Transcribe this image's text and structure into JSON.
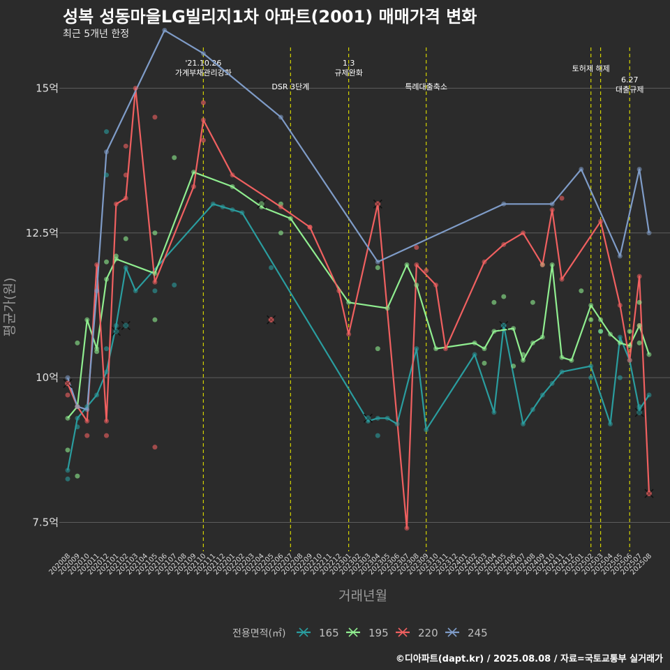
{
  "title": "성복 성동마을LG빌리지1차 아파트(2001) 매매가격 변화",
  "subtitle": "최근 5개년 한정",
  "caption": "©디아파트(dapt.kr) / 2025.08.08 / 자료=국토교통부 실거래가",
  "chart_data": {
    "type": "line",
    "xlabel": "거래년월",
    "ylabel": "평균가(원)",
    "ylim": [
      7.0,
      15.8
    ],
    "yticks": [
      {
        "value": 7.5,
        "label": "7.5억"
      },
      {
        "value": 10,
        "label": "10억"
      },
      {
        "value": 12.5,
        "label": "12.5억"
      },
      {
        "value": 15,
        "label": "15억"
      }
    ],
    "categories": [
      "202008",
      "202009",
      "202010",
      "202011",
      "202012",
      "202101",
      "202102",
      "202103",
      "202104",
      "202105",
      "202106",
      "202107",
      "202108",
      "202109",
      "202110",
      "202111",
      "202112",
      "202201",
      "202202",
      "202203",
      "202204",
      "202205",
      "202206",
      "202207",
      "202208",
      "202209",
      "202210",
      "202211",
      "202212",
      "202301",
      "202302",
      "202303",
      "202304",
      "202305",
      "202306",
      "202307",
      "202308",
      "202309",
      "202310",
      "202311",
      "202312",
      "202401",
      "202402",
      "202403",
      "202404",
      "202405",
      "202406",
      "202407",
      "202408",
      "202409",
      "202410",
      "202411",
      "202412",
      "202501",
      "202502",
      "202503",
      "202504",
      "202505",
      "202506",
      "202507",
      "202508"
    ],
    "legend_title": "전용면적(㎡)",
    "legend_position": "bottom",
    "colors": {
      "165": "#2a9d9f",
      "195": "#90ee90",
      "220": "#f06060",
      "245": "#7f9cc8",
      "event": "#d4d400",
      "grid": "#5e5e5e"
    },
    "series": [
      {
        "name": "165",
        "points": [
          [
            0,
            8.4
          ],
          [
            1,
            9.3
          ],
          [
            2,
            9.5
          ],
          [
            3,
            9.7
          ],
          [
            4,
            10.1
          ],
          [
            5,
            10.9
          ],
          [
            6,
            11.9
          ],
          [
            7,
            11.5
          ],
          [
            15,
            13.0
          ],
          [
            16,
            12.95
          ],
          [
            17,
            12.9
          ],
          [
            18,
            12.85
          ],
          [
            31,
            9.25
          ],
          [
            32,
            9.3
          ],
          [
            33,
            9.3
          ],
          [
            34,
            9.2
          ],
          [
            36,
            10.5
          ],
          [
            37,
            9.1
          ],
          [
            42,
            10.4
          ],
          [
            44,
            9.4
          ],
          [
            45,
            10.9
          ],
          [
            47,
            9.2
          ],
          [
            48,
            9.45
          ],
          [
            49,
            9.7
          ],
          [
            50,
            9.9
          ],
          [
            51,
            10.1
          ],
          [
            54,
            10.2
          ],
          [
            56,
            9.2
          ],
          [
            57,
            10.7
          ],
          [
            58,
            10.3
          ],
          [
            59,
            9.45
          ],
          [
            60,
            9.7
          ]
        ]
      },
      {
        "name": "195",
        "points": [
          [
            0,
            9.3
          ],
          [
            1,
            9.5
          ],
          [
            2,
            11.0
          ],
          [
            3,
            10.5
          ],
          [
            4,
            11.7
          ],
          [
            5,
            12.05
          ],
          [
            9,
            11.8
          ],
          [
            13,
            13.55
          ],
          [
            17,
            13.3
          ],
          [
            20,
            12.95
          ],
          [
            23,
            12.75
          ],
          [
            29,
            11.3
          ],
          [
            33,
            11.2
          ],
          [
            35,
            11.95
          ],
          [
            36,
            11.6
          ],
          [
            38,
            10.5
          ],
          [
            42,
            10.6
          ],
          [
            43,
            10.5
          ],
          [
            44,
            10.8
          ],
          [
            46,
            10.85
          ],
          [
            47,
            10.3
          ],
          [
            48,
            10.6
          ],
          [
            49,
            10.7
          ],
          [
            50,
            11.95
          ],
          [
            51,
            10.35
          ],
          [
            52,
            10.3
          ],
          [
            54,
            11.25
          ],
          [
            55,
            11.0
          ],
          [
            56,
            10.75
          ],
          [
            57,
            10.6
          ],
          [
            58,
            10.55
          ],
          [
            59,
            10.9
          ],
          [
            60,
            10.4
          ]
        ]
      },
      {
        "name": "220",
        "points": [
          [
            0,
            9.9
          ],
          [
            1,
            9.5
          ],
          [
            2,
            9.25
          ],
          [
            3,
            11.95
          ],
          [
            4,
            9.25
          ],
          [
            5,
            13.0
          ],
          [
            6,
            13.1
          ],
          [
            7,
            15.0
          ],
          [
            9,
            11.65
          ],
          [
            13,
            13.3
          ],
          [
            14,
            14.45
          ],
          [
            17,
            13.5
          ],
          [
            22,
            12.95
          ],
          [
            25,
            12.6
          ],
          [
            28,
            11.5
          ],
          [
            29,
            10.75
          ],
          [
            32,
            13.0
          ],
          [
            35,
            7.4
          ],
          [
            36,
            11.95
          ],
          [
            38,
            11.6
          ],
          [
            39,
            10.5
          ],
          [
            43,
            12.0
          ],
          [
            45,
            12.3
          ],
          [
            47,
            12.5
          ],
          [
            49,
            11.95
          ],
          [
            50,
            12.9
          ],
          [
            51,
            11.7
          ],
          [
            55,
            12.7
          ],
          [
            57,
            11.25
          ],
          [
            58,
            10.3
          ],
          [
            59,
            11.75
          ],
          [
            60,
            8.0
          ]
        ]
      },
      {
        "name": "245",
        "points": [
          [
            0,
            10.0
          ],
          [
            1,
            9.5
          ],
          [
            2,
            9.45
          ],
          [
            3,
            11.5
          ],
          [
            4,
            13.9
          ],
          [
            10,
            16.0
          ],
          [
            14,
            15.6
          ],
          [
            22,
            14.5
          ],
          [
            32,
            12.0
          ],
          [
            45,
            13.0
          ],
          [
            50,
            13.0
          ],
          [
            53,
            13.6
          ],
          [
            57,
            12.1
          ],
          [
            59,
            13.6
          ],
          [
            60,
            12.5
          ]
        ]
      }
    ],
    "scatter_extra": [
      {
        "name": "165",
        "points": [
          [
            0,
            8.25
          ],
          [
            1,
            9.15
          ],
          [
            4,
            13.5
          ],
          [
            4,
            14.25
          ],
          [
            4,
            10.5
          ],
          [
            9,
            11.5
          ],
          [
            11,
            11.6
          ],
          [
            21,
            11.9
          ],
          [
            32,
            9.0
          ],
          [
            59,
            9.5
          ],
          [
            57,
            10.0
          ],
          [
            55,
            10.8
          ],
          [
            54,
            10.0
          ]
        ]
      },
      {
        "name": "195",
        "points": [
          [
            0,
            8.75
          ],
          [
            1,
            10.6
          ],
          [
            1,
            8.3
          ],
          [
            3,
            10.45
          ],
          [
            4,
            12.0
          ],
          [
            5,
            12.1
          ],
          [
            6,
            12.4
          ],
          [
            9,
            12.5
          ],
          [
            9,
            11.0
          ],
          [
            11,
            13.8
          ],
          [
            22,
            13.0
          ],
          [
            22,
            12.5
          ],
          [
            32,
            11.9
          ],
          [
            32,
            10.5
          ],
          [
            43,
            10.25
          ],
          [
            44,
            11.3
          ],
          [
            45,
            11.4
          ],
          [
            46,
            10.2
          ],
          [
            47,
            10.4
          ],
          [
            48,
            11.3
          ],
          [
            49,
            11.95
          ],
          [
            53,
            11.5
          ],
          [
            54,
            11.0
          ],
          [
            55,
            10.8
          ],
          [
            59,
            11.3
          ],
          [
            59,
            10.6
          ],
          [
            58,
            10.8
          ]
        ]
      },
      {
        "name": "220",
        "points": [
          [
            0,
            9.7
          ],
          [
            2,
            9.0
          ],
          [
            4,
            9.0
          ],
          [
            6,
            14.0
          ],
          [
            6,
            13.5
          ],
          [
            9,
            14.5
          ],
          [
            9,
            8.8
          ],
          [
            14,
            14.75
          ],
          [
            14,
            14.1
          ],
          [
            21,
            11.0
          ],
          [
            25,
            12.6
          ],
          [
            36,
            12.25
          ],
          [
            37,
            11.85
          ],
          [
            51,
            13.1
          ],
          [
            59,
            10.9
          ]
        ]
      },
      {
        "name": "245",
        "points": []
      }
    ],
    "cross_markers": [
      {
        "series": "165",
        "x": 5,
        "y": 10.8
      },
      {
        "series": "165",
        "x": 6,
        "y": 10.9
      },
      {
        "series": "165",
        "x": 31,
        "y": 9.3
      },
      {
        "series": "165",
        "x": 45,
        "y": 10.9
      },
      {
        "series": "165",
        "x": 59,
        "y": 9.4
      },
      {
        "series": "195",
        "x": 20,
        "y": 13.0
      },
      {
        "series": "220",
        "x": 21,
        "y": 11.0
      },
      {
        "series": "220",
        "x": 32,
        "y": 13.0
      },
      {
        "series": "220",
        "x": 60,
        "y": 8.0
      },
      {
        "series": "220",
        "x": 0,
        "y": 9.9
      }
    ],
    "events": [
      {
        "x": 14,
        "lines": [
          "'21.10.26",
          "가계부채관리강화"
        ],
        "level": 0
      },
      {
        "x": 23,
        "lines": [
          "DSR 3단계"
        ],
        "level": 2
      },
      {
        "x": 29,
        "lines": [
          "1.3",
          "규제완화"
        ],
        "level": 0
      },
      {
        "x": 37,
        "lines": [
          "특례대출축소"
        ],
        "level": 2
      },
      {
        "x": 54,
        "lines": [
          "토허제 해제"
        ],
        "level": 1
      },
      {
        "x": 55,
        "lines": [],
        "level": 1
      },
      {
        "x": 58,
        "lines": [
          "6.27",
          "대출규제"
        ],
        "level": 1.7
      }
    ]
  }
}
